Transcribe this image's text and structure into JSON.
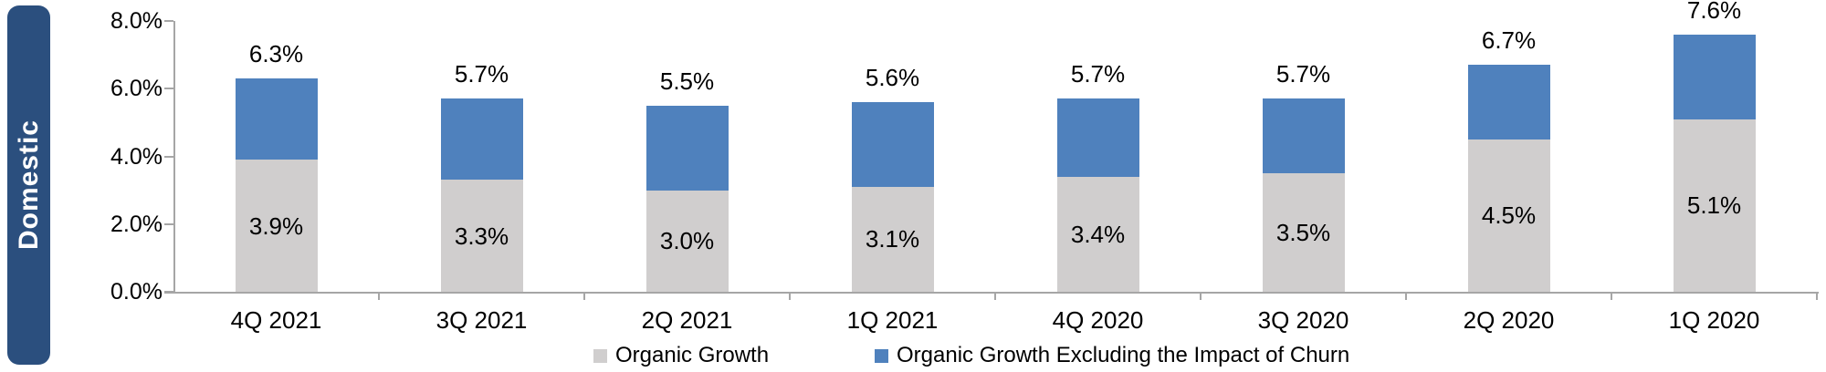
{
  "chart_data": {
    "type": "stacked-bar",
    "row_label": "Domestic",
    "categories": [
      "4Q 2021",
      "3Q 2021",
      "2Q 2021",
      "1Q 2021",
      "4Q 2020",
      "3Q 2020",
      "2Q 2020",
      "1Q 2020"
    ],
    "series": [
      {
        "name": "Organic Growth",
        "color": "#D0CECE",
        "values": [
          3.9,
          3.3,
          3.0,
          3.1,
          3.4,
          3.5,
          4.5,
          5.1
        ],
        "label_position": "inside"
      },
      {
        "name": "Organic Growth Excluding the Impact of Churn",
        "color": "#4F81BD",
        "values": [
          6.3,
          5.7,
          5.5,
          5.6,
          5.7,
          5.7,
          6.7,
          7.6
        ],
        "cumulative_total": true,
        "label_position": "above"
      }
    ],
    "ylim": [
      0,
      8
    ],
    "y_ticks": [
      {
        "label": "8.0%",
        "value": 8
      },
      {
        "label": "6.0%",
        "value": 6
      },
      {
        "label": "4.0%",
        "value": 4
      },
      {
        "label": "2.0%",
        "value": 2
      },
      {
        "label": "0.0%",
        "value": 0
      }
    ],
    "value_suffix": "%",
    "grid": false,
    "legend_position": "bottom",
    "colors": {
      "row_tab_background": "#2B4F7E",
      "row_tab_text": "#FFFFFF",
      "axis": "#A6A6A6",
      "label_text": "#000000"
    }
  }
}
